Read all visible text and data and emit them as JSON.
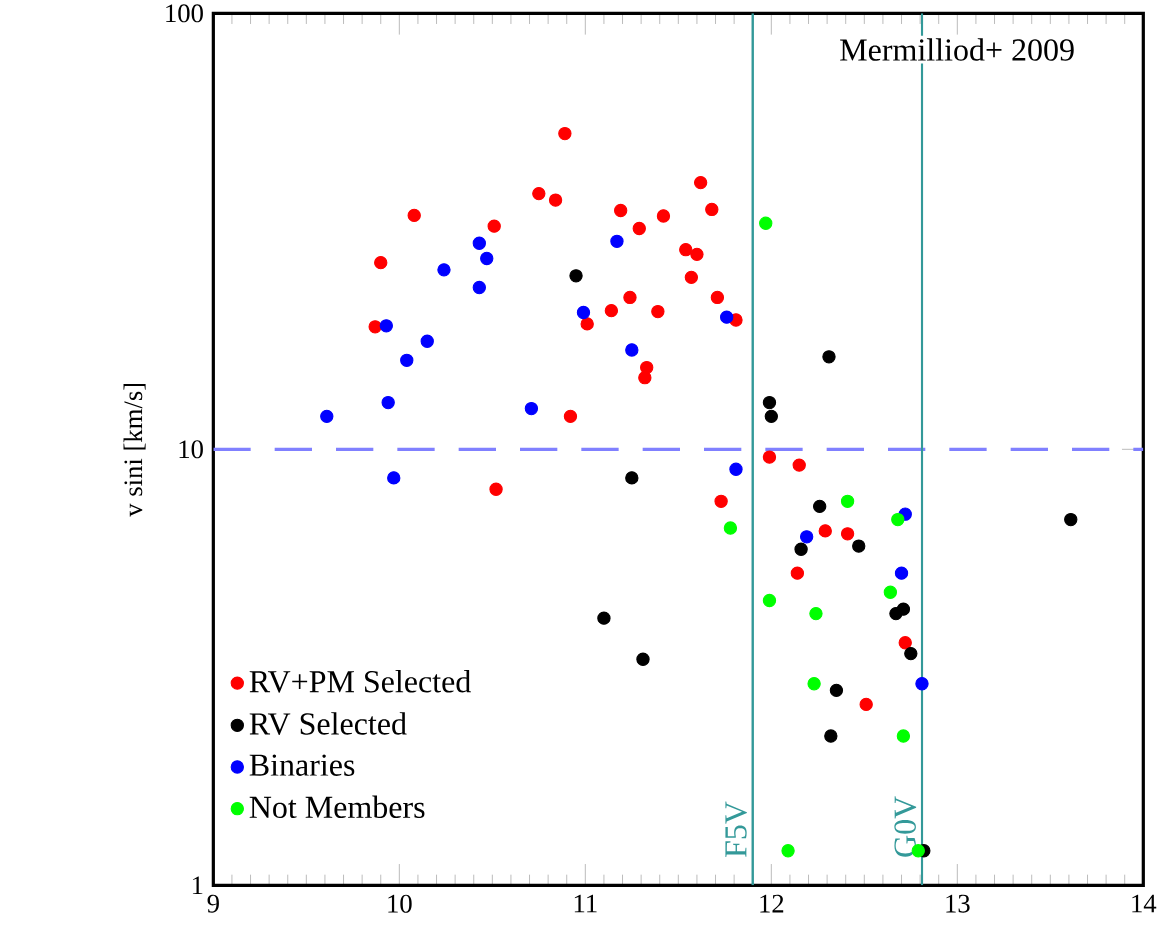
{
  "chart_data": {
    "type": "scatter",
    "ylabel": "v sini [km/s]",
    "log": "y",
    "legend": "bottom left",
    "xlim": [
      9,
      14
    ],
    "xticks": [
      9,
      10,
      11,
      12,
      13,
      14
    ],
    "ylim": [
      1,
      100
    ],
    "yticks": [
      1,
      10,
      100
    ],
    "annotations": [
      "Mermilliod+ 2009"
    ],
    "ref_lines": [
      {
        "axis": "y",
        "value": 10,
        "color": "#8080ff",
        "line_style": "dashed"
      },
      {
        "axis": "x",
        "value": 11.9,
        "label": "F5V",
        "color": "#339999",
        "line_style": "solid"
      },
      {
        "axis": "x",
        "value": 12.81,
        "label": "G0V",
        "color": "#339999",
        "line_style": "solid"
      }
    ],
    "series": [
      {
        "name": "RV+PM Selected",
        "color": "#ff0000",
        "x": [
          10.89,
          10.75,
          10.84,
          10.08,
          10.51,
          11.19,
          11.29,
          11.42,
          9.9,
          11.01,
          9.87,
          11.14,
          11.24,
          11.39,
          11.33,
          11.32,
          10.92,
          10.52,
          11.62,
          11.68,
          11.54,
          11.6,
          11.57,
          11.71,
          11.81,
          11.99,
          12.15,
          11.73,
          12.29,
          12.41,
          12.14,
          12.72,
          12.51
        ],
        "values": [
          53,
          38.6,
          37.3,
          34.4,
          32.5,
          35.3,
          32.1,
          34.3,
          26.8,
          19.4,
          19.1,
          20.8,
          22.3,
          20.7,
          15.4,
          14.6,
          11.9,
          8.1,
          40.9,
          35.5,
          28.7,
          28,
          24.8,
          22.3,
          19.8,
          9.6,
          9.2,
          7.6,
          6.5,
          6.4,
          5.2,
          3.6,
          2.6
        ]
      },
      {
        "name": "RV Selected",
        "color": "#000000",
        "x": [
          10.95,
          11.25,
          12.31,
          11.99,
          12.0,
          12.26,
          12.16,
          12.47,
          12.67,
          12.71,
          12.75,
          12.35,
          12.32,
          12.82,
          13.61,
          11.1,
          11.31
        ],
        "values": [
          25,
          8.6,
          16.3,
          12.8,
          11.9,
          7.4,
          5.9,
          6.0,
          4.2,
          4.3,
          3.4,
          2.8,
          2.2,
          1.2,
          6.9,
          4.1,
          3.3
        ]
      },
      {
        "name": "Binaries",
        "color": "#0000ff",
        "x": [
          9.61,
          9.94,
          9.93,
          10.04,
          10.15,
          10.24,
          10.43,
          10.47,
          10.43,
          10.71,
          10.99,
          11.17,
          11.25,
          9.97,
          11.76,
          11.81,
          12.19,
          12.72,
          12.7,
          12.81
        ],
        "values": [
          11.9,
          12.8,
          19.2,
          16,
          17.7,
          25.8,
          29.7,
          27.4,
          23.5,
          12.4,
          20.6,
          30,
          16.9,
          8.6,
          20.1,
          9,
          6.3,
          7.1,
          5.2,
          2.9
        ]
      },
      {
        "name": "Not Members",
        "color": "#00ff00",
        "x": [
          11.97,
          12.41,
          11.78,
          12.68,
          11.99,
          12.24,
          12.64,
          12.23,
          12.71,
          12.09,
          12.79
        ],
        "values": [
          33,
          7.6,
          6.6,
          6.9,
          4.5,
          4.2,
          4.7,
          2.9,
          2.2,
          1.2,
          1.2
        ]
      }
    ]
  }
}
